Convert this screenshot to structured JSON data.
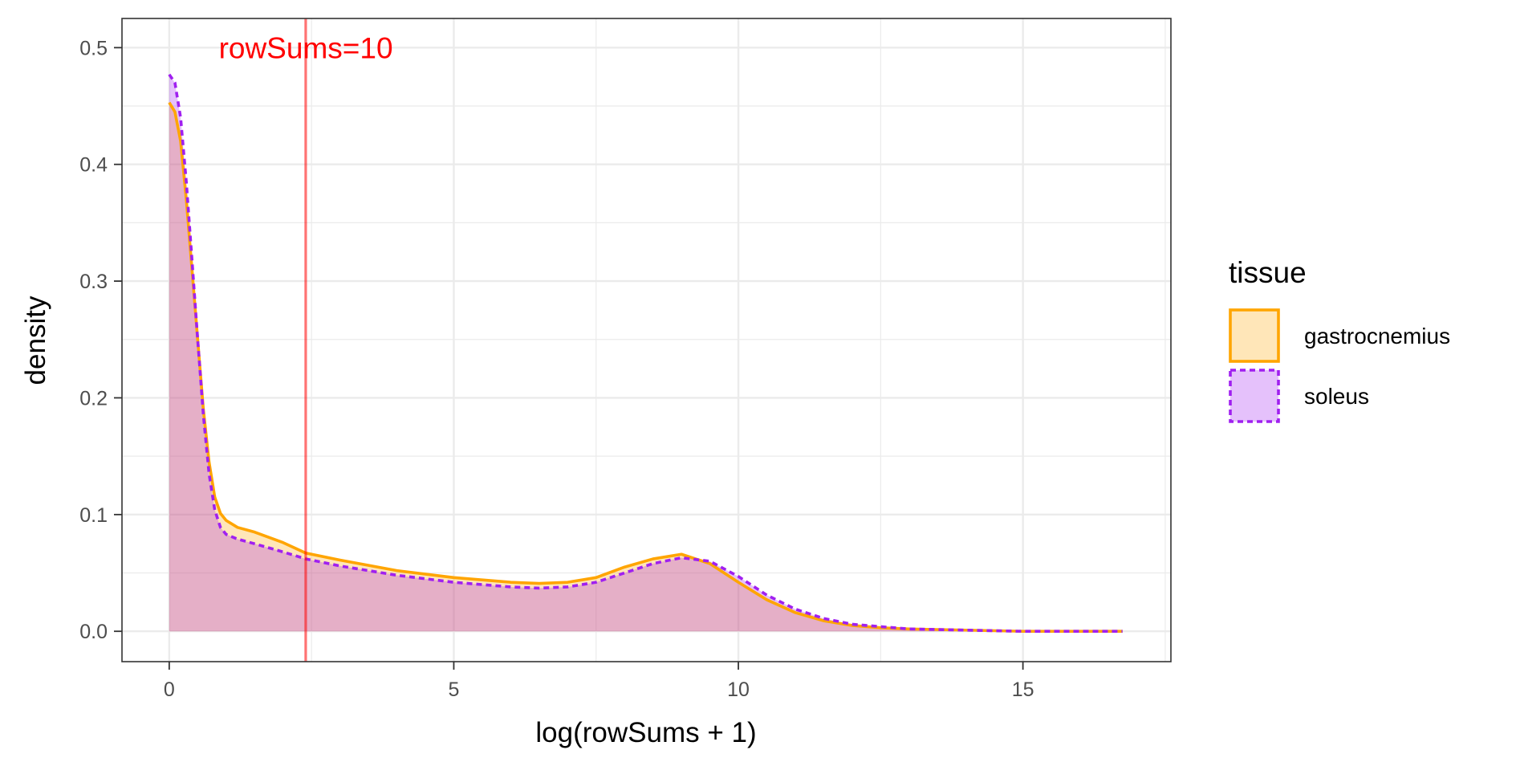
{
  "chart_data": {
    "type": "area",
    "xlabel": "log(rowSums + 1)",
    "ylabel": "density",
    "xlim": [
      -0.83,
      17.6
    ],
    "ylim": [
      -0.026,
      0.525
    ],
    "x_ticks": [
      0,
      5,
      10,
      15
    ],
    "x_tick_labels": [
      "0",
      "5",
      "10",
      "15"
    ],
    "y_ticks": [
      0.0,
      0.1,
      0.2,
      0.3,
      0.4,
      0.5
    ],
    "y_tick_labels": [
      "0.0",
      "0.1",
      "0.2",
      "0.3",
      "0.4",
      "0.5"
    ],
    "grid": true,
    "legend": {
      "title": "tissue",
      "position": "right"
    },
    "annotation": {
      "text": "rowSums=10",
      "x": 2.4,
      "color": "#ff0000"
    },
    "vline": {
      "x": 2.398,
      "color": "#ff0000"
    },
    "series": [
      {
        "name": "gastrocnemius",
        "line_color": "#ffa500",
        "fill_color": "#ffa500",
        "linestyle": "solid",
        "points": [
          [
            0.0,
            0.453
          ],
          [
            0.1,
            0.445
          ],
          [
            0.2,
            0.42
          ],
          [
            0.3,
            0.37
          ],
          [
            0.4,
            0.31
          ],
          [
            0.5,
            0.25
          ],
          [
            0.6,
            0.19
          ],
          [
            0.7,
            0.145
          ],
          [
            0.8,
            0.115
          ],
          [
            0.9,
            0.101
          ],
          [
            1.0,
            0.095
          ],
          [
            1.2,
            0.089
          ],
          [
            1.5,
            0.085
          ],
          [
            2.0,
            0.076
          ],
          [
            2.4,
            0.067
          ],
          [
            3.0,
            0.061
          ],
          [
            4.0,
            0.052
          ],
          [
            5.0,
            0.046
          ],
          [
            6.0,
            0.042
          ],
          [
            6.5,
            0.041
          ],
          [
            7.0,
            0.042
          ],
          [
            7.5,
            0.046
          ],
          [
            8.0,
            0.055
          ],
          [
            8.5,
            0.062
          ],
          [
            9.0,
            0.066
          ],
          [
            9.5,
            0.058
          ],
          [
            10.0,
            0.042
          ],
          [
            10.5,
            0.027
          ],
          [
            11.0,
            0.016
          ],
          [
            11.5,
            0.009
          ],
          [
            12.0,
            0.005
          ],
          [
            12.5,
            0.003
          ],
          [
            13.0,
            0.002
          ],
          [
            14.0,
            0.001
          ],
          [
            15.0,
            0.0
          ],
          [
            16.75,
            0.0
          ]
        ]
      },
      {
        "name": "soleus",
        "line_color": "#a020f0",
        "fill_color": "#a020f0",
        "linestyle": "dashed",
        "points": [
          [
            0.0,
            0.477
          ],
          [
            0.1,
            0.47
          ],
          [
            0.2,
            0.44
          ],
          [
            0.3,
            0.385
          ],
          [
            0.4,
            0.318
          ],
          [
            0.5,
            0.25
          ],
          [
            0.6,
            0.185
          ],
          [
            0.7,
            0.135
          ],
          [
            0.8,
            0.104
          ],
          [
            0.9,
            0.089
          ],
          [
            1.0,
            0.083
          ],
          [
            1.2,
            0.079
          ],
          [
            1.5,
            0.075
          ],
          [
            2.0,
            0.068
          ],
          [
            2.4,
            0.062
          ],
          [
            3.0,
            0.056
          ],
          [
            4.0,
            0.048
          ],
          [
            5.0,
            0.042
          ],
          [
            6.0,
            0.038
          ],
          [
            6.5,
            0.037
          ],
          [
            7.0,
            0.038
          ],
          [
            7.5,
            0.042
          ],
          [
            8.0,
            0.05
          ],
          [
            8.5,
            0.058
          ],
          [
            9.0,
            0.063
          ],
          [
            9.5,
            0.06
          ],
          [
            10.0,
            0.047
          ],
          [
            10.5,
            0.031
          ],
          [
            11.0,
            0.019
          ],
          [
            11.5,
            0.011
          ],
          [
            12.0,
            0.006
          ],
          [
            12.5,
            0.004
          ],
          [
            13.0,
            0.002
          ],
          [
            14.0,
            0.001
          ],
          [
            15.0,
            0.0
          ],
          [
            16.75,
            0.0
          ]
        ]
      }
    ]
  }
}
